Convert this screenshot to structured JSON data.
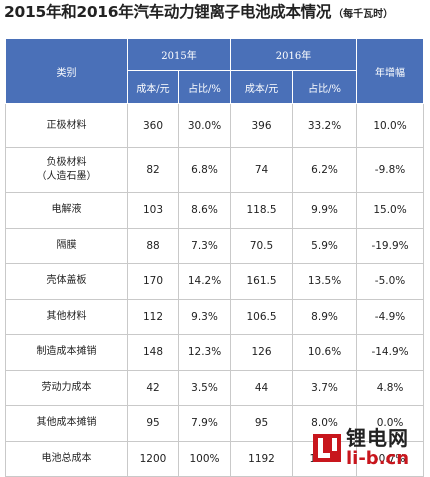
{
  "title": {
    "main": "2015年和2016年汽车动力锂离子电池成本情况",
    "unit": "（每千瓦时）"
  },
  "table": {
    "header": {
      "category": "类别",
      "year_2015": "2015年",
      "year_2016": "2016年",
      "growth": "年增幅",
      "cost": "成本/元",
      "share": "占比/%"
    },
    "rows": [
      {
        "category": "正极材料",
        "cost_2015": "360",
        "share_2015": "30.0%",
        "cost_2016": "396",
        "share_2016": "33.2%",
        "growth": "10.0%"
      },
      {
        "category": "负极材料\n（人造石墨）",
        "cost_2015": "82",
        "share_2015": "6.8%",
        "cost_2016": "74",
        "share_2016": "6.2%",
        "growth": "-9.8%"
      },
      {
        "category": "电解液",
        "cost_2015": "103",
        "share_2015": "8.6%",
        "cost_2016": "118.5",
        "share_2016": "9.9%",
        "growth": "15.0%"
      },
      {
        "category": "隔膜",
        "cost_2015": "88",
        "share_2015": "7.3%",
        "cost_2016": "70.5",
        "share_2016": "5.9%",
        "growth": "-19.9%"
      },
      {
        "category": "壳体盖板",
        "cost_2015": "170",
        "share_2015": "14.2%",
        "cost_2016": "161.5",
        "share_2016": "13.5%",
        "growth": "-5.0%"
      },
      {
        "category": "其他材料",
        "cost_2015": "112",
        "share_2015": "9.3%",
        "cost_2016": "106.5",
        "share_2016": "8.9%",
        "growth": "-4.9%"
      },
      {
        "category": "制造成本摊销",
        "cost_2015": "148",
        "share_2015": "12.3%",
        "cost_2016": "126",
        "share_2016": "10.6%",
        "growth": "-14.9%"
      },
      {
        "category": "劳动力成本",
        "cost_2015": "42",
        "share_2015": "3.5%",
        "cost_2016": "44",
        "share_2016": "3.7%",
        "growth": "4.8%"
      },
      {
        "category": "其他成本摊销",
        "cost_2015": "95",
        "share_2015": "7.9%",
        "cost_2016": "95",
        "share_2016": "8.0%",
        "growth": "0.0%"
      },
      {
        "category": "电池总成本",
        "cost_2015": "1200",
        "share_2015": "100%",
        "cost_2016": "1192",
        "share_2016": "100%",
        "growth": "-0.7%"
      }
    ]
  },
  "watermark": {
    "cn": "锂电网",
    "en": "li-b.cn",
    "accent_color": "#c8161d",
    "icon": "li-logo-icon"
  },
  "colors": {
    "header_bg": "#4a70b8",
    "header_text": "#ffffff"
  }
}
